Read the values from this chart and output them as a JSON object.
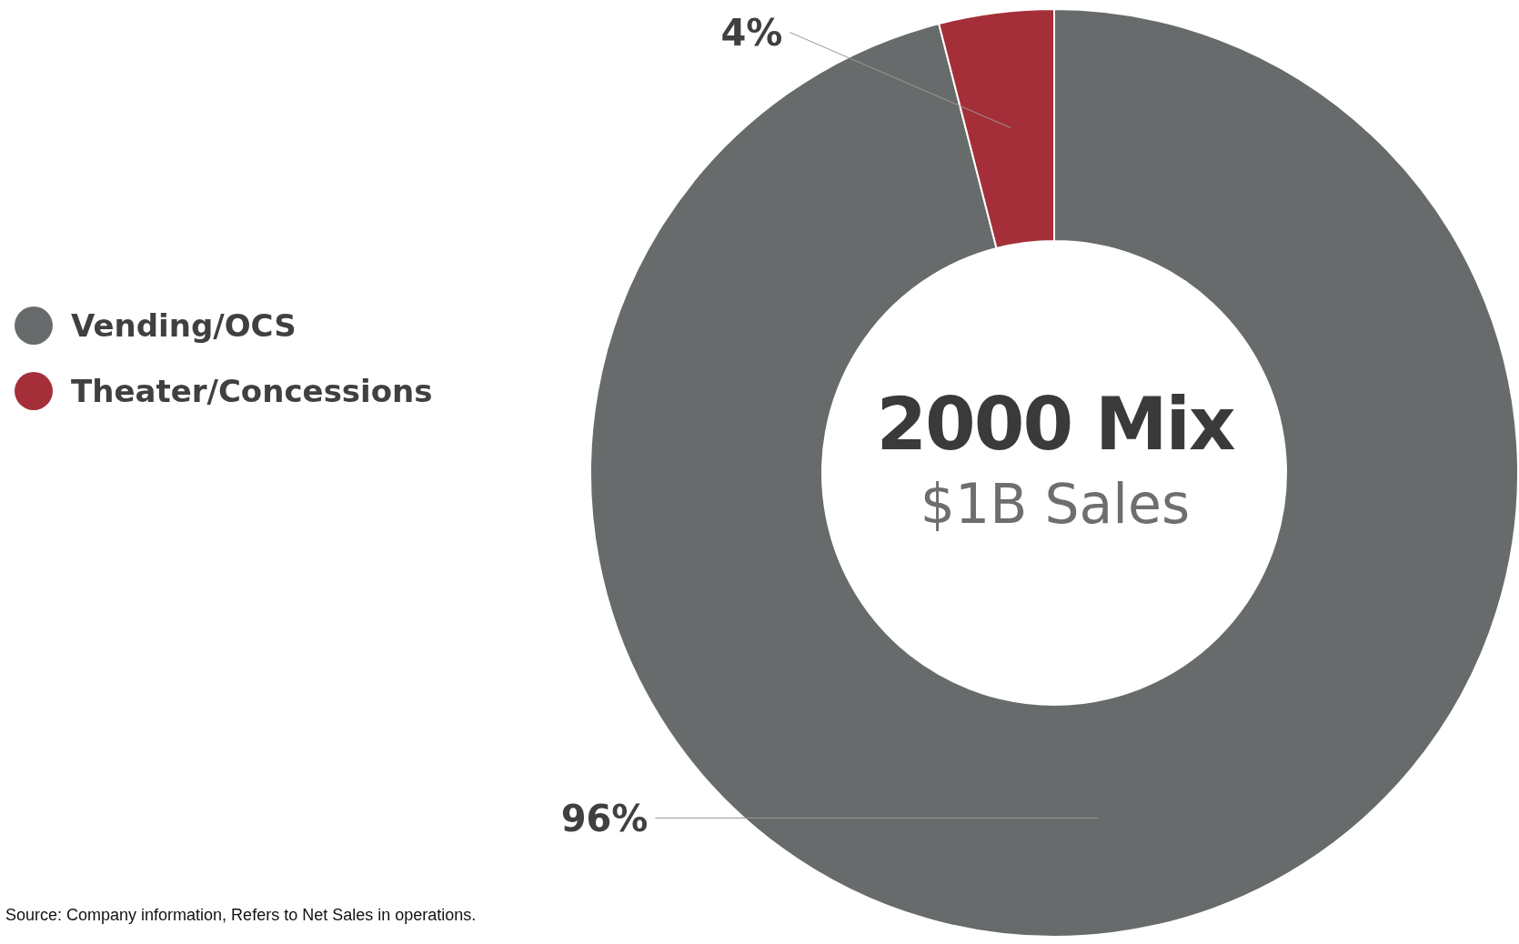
{
  "chart_data": {
    "type": "donut",
    "title": "2000 Mix",
    "subtitle": "$1B Sales",
    "categories": [
      "Vending/OCS",
      "Theater/Concessions"
    ],
    "values": [
      96,
      4
    ],
    "colors": [
      "#686b6b",
      "#a52f38"
    ],
    "value_labels": [
      "96%",
      "4%"
    ],
    "legend": "left",
    "annotations": [
      "Source: Company information, Refers to Net Sales in operations."
    ]
  }
}
